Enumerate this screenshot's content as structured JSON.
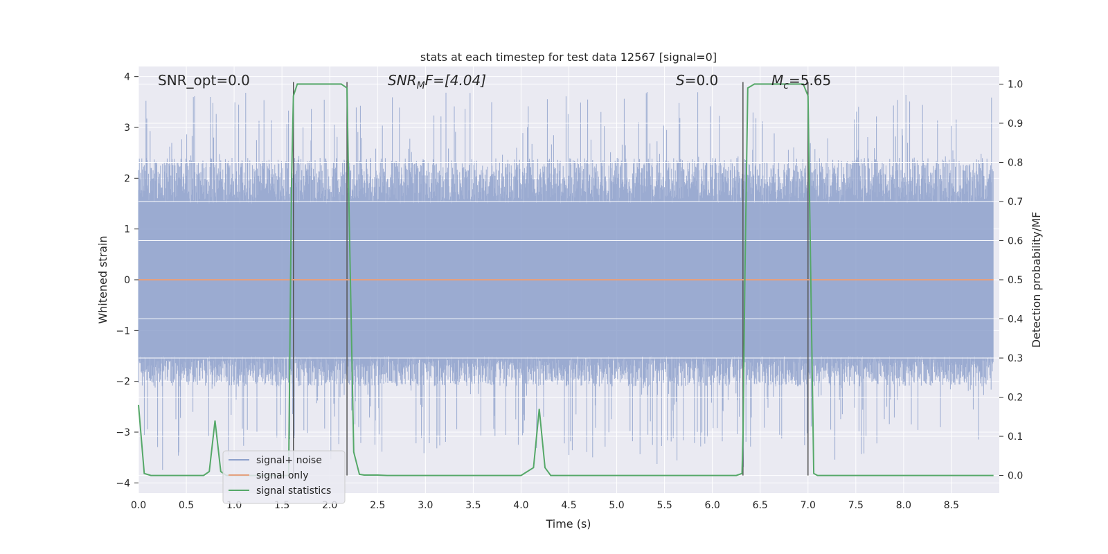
{
  "chart_data": {
    "type": "line",
    "title": "stats at each timestep for test data 12567 [signal=0]",
    "xlabel": "Time (s)",
    "ylabel": "Whitened strain",
    "y2label": "Detection probability/MF",
    "xlim": [
      0.0,
      9.0
    ],
    "ylim": [
      -4.2,
      4.2
    ],
    "y2lim": [
      -0.045,
      1.045
    ],
    "xticks": [
      "0.0",
      "0.5",
      "1.0",
      "1.5",
      "2.0",
      "2.5",
      "3.0",
      "3.5",
      "4.0",
      "4.5",
      "5.0",
      "5.5",
      "6.0",
      "6.5",
      "7.0",
      "7.5",
      "8.0",
      "8.5"
    ],
    "yticks": [
      "4",
      "3",
      "2",
      "1",
      "0",
      "−1",
      "−2",
      "−3",
      "−4"
    ],
    "y2ticks": [
      "1.0",
      "0.9",
      "0.8",
      "0.7",
      "0.6",
      "0.5",
      "0.4",
      "0.3",
      "0.2",
      "0.1",
      "0.0"
    ],
    "grid": true,
    "legend_position": "lower-left",
    "annotations": {
      "snr_opt": "SNR_opt=0.0",
      "snr_mf_base": "SNR",
      "snr_mf_sub": "M",
      "snr_mf_rest": "F=[4.04]",
      "s_italic": "S",
      "s_rest": "=0.0",
      "mc_base": "M",
      "mc_sub": "c",
      "mc_rest": "=5.65"
    },
    "vertical_lines_x": [
      1.62,
      2.18,
      6.32,
      7.0
    ],
    "series": [
      {
        "name": "signal+ noise",
        "axis": "left",
        "color": "#8da0cb",
        "description_level": "noise band roughly -2 to 2.3 with spikes to about +/-3.8"
      },
      {
        "name": "signal only",
        "axis": "left",
        "color": "#e5a07e",
        "values_constant": 0.0
      },
      {
        "name": "signal statistics",
        "axis": "right",
        "color": "#55a868",
        "x": [
          0.0,
          0.06,
          0.13,
          0.2,
          0.5,
          0.68,
          0.74,
          0.8,
          0.86,
          0.92,
          1.0,
          1.5,
          1.57,
          1.6,
          1.62,
          1.66,
          1.69,
          2.0,
          2.12,
          2.18,
          2.2,
          2.25,
          2.31,
          2.36,
          2.5,
          2.6,
          3.0,
          4.0,
          4.13,
          4.19,
          4.25,
          4.31,
          4.37,
          5.0,
          6.25,
          6.31,
          6.32,
          6.34,
          6.37,
          6.44,
          6.5,
          6.95,
          7.0,
          7.06,
          7.1,
          7.5,
          8.0,
          8.94
        ],
        "values": [
          0.18,
          0.005,
          0.0,
          0.0,
          0.0,
          0.0,
          0.01,
          0.14,
          0.01,
          0.0,
          0.0,
          0.0,
          0.0,
          0.75,
          0.97,
          1.0,
          1.0,
          1.0,
          1.0,
          0.99,
          0.7,
          0.06,
          0.003,
          0.001,
          0.001,
          0.0,
          0.0,
          0.0,
          0.02,
          0.17,
          0.02,
          0.0,
          0.0,
          0.0,
          0.0,
          0.005,
          0.1,
          0.5,
          0.99,
          1.0,
          1.0,
          1.0,
          0.97,
          0.005,
          0.0,
          0.0,
          0.0,
          0.0
        ]
      }
    ]
  }
}
